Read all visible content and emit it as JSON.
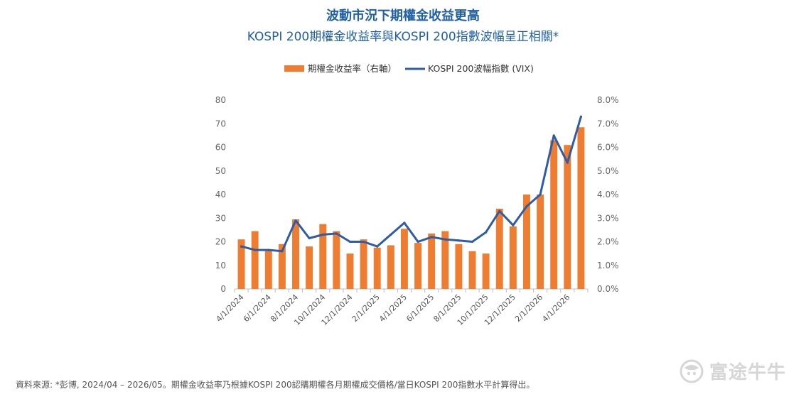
{
  "header": {
    "title": "波動市況下期權金收益更高",
    "subtitle": "KOSPI 200期權金收益率與KOSPI 200指數波幅呈正相關*"
  },
  "footer": {
    "source": "資料來源: *彭博, 2024/04 – 2026/05。期權金收益率乃根據KOSPI 200認購期權各月期權成交價格/當日KOSPI 200指數水平計算得出。",
    "watermark": "富途牛牛"
  },
  "chart_data": {
    "type": "bar",
    "categories": [
      "4/1/2024",
      "5/1/2024",
      "6/1/2024",
      "7/1/2024",
      "8/1/2024",
      "9/1/2024",
      "10/1/2024",
      "11/1/2024",
      "12/1/2024",
      "1/1/2025",
      "2/1/2025",
      "3/1/2025",
      "4/1/2025",
      "5/1/2025",
      "6/1/2025",
      "7/1/2025",
      "8/1/2025",
      "9/1/2025",
      "10/1/2025",
      "11/1/2025",
      "12/1/2025",
      "1/1/2026",
      "2/1/2026",
      "3/1/2026",
      "4/1/2026",
      "5/1/2026"
    ],
    "x_tick_labels": [
      "4/1/2024",
      "6/1/2024",
      "8/1/2024",
      "10/1/2024",
      "12/1/2024",
      "2/1/2025",
      "4/1/2025",
      "6/1/2025",
      "8/1/2025",
      "10/1/2025",
      "12/1/2025",
      "2/1/2026",
      "4/1/2026"
    ],
    "series": [
      {
        "name": "期權金收益率（右軸）",
        "type": "bar",
        "axis": "right",
        "color": "#ee7d31",
        "values": [
          2.1,
          2.45,
          1.65,
          1.9,
          2.95,
          1.8,
          2.75,
          2.45,
          1.5,
          2.1,
          1.75,
          1.85,
          2.55,
          1.95,
          2.35,
          2.45,
          1.9,
          1.6,
          1.5,
          3.4,
          2.65,
          4.0,
          4.0,
          6.3,
          6.1,
          6.85
        ]
      },
      {
        "name": "KOSPI 200波幅指數 (VIX)",
        "type": "line",
        "axis": "left",
        "color": "#2e5da6",
        "values": [
          18,
          16.5,
          16.5,
          16,
          29,
          21.5,
          23,
          23.5,
          20,
          20,
          18,
          23,
          28,
          20,
          22,
          21,
          20.5,
          20,
          24,
          33,
          27,
          35,
          40,
          65,
          53.5,
          73
        ]
      }
    ],
    "y_left": {
      "min": 0,
      "max": 80,
      "step": 10,
      "tick_labels": [
        "0",
        "10",
        "20",
        "30",
        "40",
        "50",
        "60",
        "70",
        "80"
      ]
    },
    "y_right": {
      "min": 0,
      "max": 8,
      "step": 1,
      "tick_labels": [
        "0.0%",
        "1.0%",
        "2.0%",
        "3.0%",
        "4.0%",
        "5.0%",
        "6.0%",
        "7.0%",
        "8.0%"
      ]
    },
    "legend_position": "top-center",
    "grid": false
  }
}
